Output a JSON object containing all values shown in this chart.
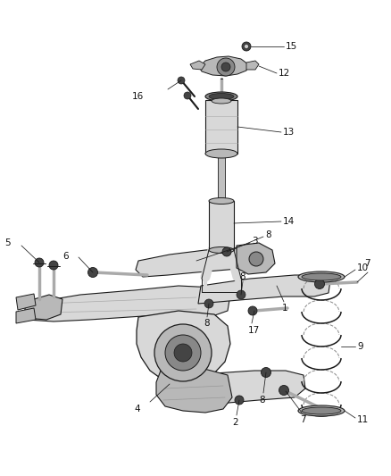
{
  "bg_color": "#ffffff",
  "fig_width": 4.38,
  "fig_height": 5.33,
  "dpi": 100,
  "lc": "#1a1a1a",
  "fc_light": "#d8d8d8",
  "fc_mid": "#b8b8b8",
  "fc_dark": "#888888",
  "fc_vdark": "#444444",
  "label_fs": 7.5,
  "label_color": "#111111",
  "leader_lw": 0.55,
  "part_lw": 0.7
}
